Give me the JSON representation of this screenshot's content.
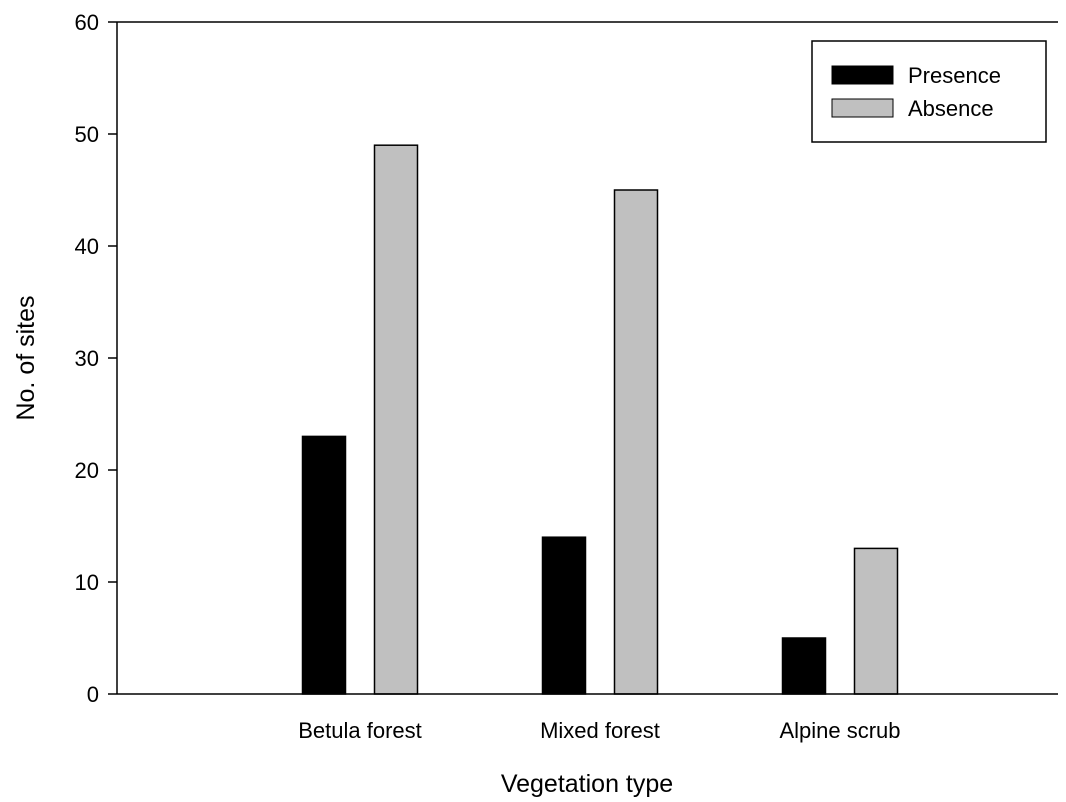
{
  "chart_data": {
    "type": "bar",
    "title": "",
    "xlabel": "Vegetation type",
    "ylabel": "No. of sites",
    "categories": [
      "Betula forest",
      "Mixed forest",
      "Alpine scrub"
    ],
    "series": [
      {
        "name": "Presence",
        "values": [
          23,
          14,
          5
        ],
        "color": "#000000"
      },
      {
        "name": "Absence",
        "values": [
          49,
          45,
          13
        ],
        "color": "#c0c0c0"
      }
    ],
    "ylim": [
      0,
      60
    ],
    "yticks": [
      0,
      10,
      20,
      30,
      40,
      50,
      60
    ],
    "grid": false,
    "legend_position": "top-right"
  }
}
